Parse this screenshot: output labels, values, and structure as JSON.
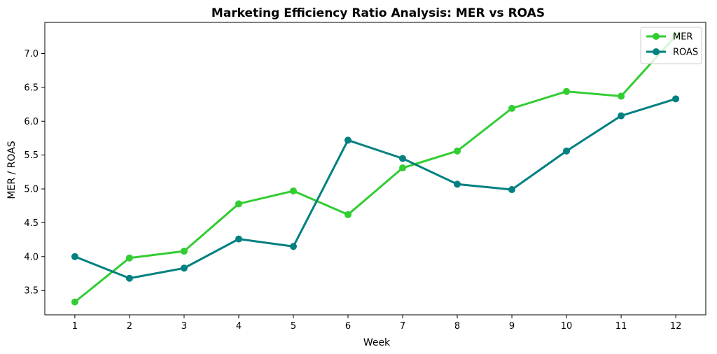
{
  "chart_data": {
    "type": "line",
    "title": "Marketing Efficiency Ratio Analysis: MER vs ROAS",
    "xlabel": "Week",
    "ylabel": "MER / ROAS",
    "x": [
      1,
      2,
      3,
      4,
      5,
      6,
      7,
      8,
      9,
      10,
      11,
      12
    ],
    "xticks": [
      "1",
      "2",
      "3",
      "4",
      "5",
      "6",
      "7",
      "8",
      "9",
      "10",
      "11",
      "12"
    ],
    "yticks": [
      "3.5",
      "4.0",
      "4.5",
      "5.0",
      "5.5",
      "6.0",
      "6.5",
      "7.0"
    ],
    "xlim": [
      0.45,
      12.55
    ],
    "ylim": [
      3.14,
      7.46
    ],
    "grid": false,
    "legend_position": "top-right",
    "series": [
      {
        "name": "MER",
        "color": "#32CD32",
        "values": [
          3.33,
          3.98,
          4.08,
          4.78,
          4.97,
          4.62,
          5.31,
          5.56,
          6.19,
          6.44,
          6.37,
          7.26
        ]
      },
      {
        "name": "ROAS",
        "color": "#008080",
        "values": [
          4.0,
          3.68,
          3.83,
          4.26,
          4.15,
          5.72,
          5.45,
          5.07,
          4.99,
          5.56,
          6.08,
          6.33
        ]
      }
    ]
  }
}
